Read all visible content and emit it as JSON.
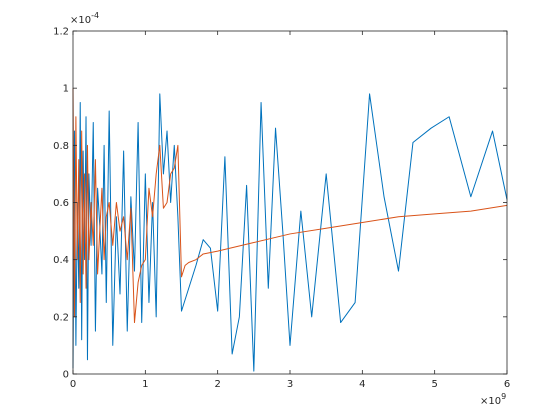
{
  "chart_data": {
    "type": "line",
    "title": "",
    "xlabel": "",
    "ylabel": "",
    "xlim": [
      0,
      6
    ],
    "ylim": [
      0,
      1.2
    ],
    "x_ticks": [
      "0",
      "1",
      "2",
      "3",
      "4",
      "5",
      "6"
    ],
    "y_ticks": [
      "0",
      "0.2",
      "0.4",
      "0.6",
      "0.8",
      "1",
      "1.2"
    ],
    "x_exponent": "9",
    "y_exponent": "-4",
    "grid": false,
    "legend": "none",
    "series": [
      {
        "color": "#0072BD",
        "x": [
          0.0,
          0.02,
          0.04,
          0.06,
          0.08,
          0.1,
          0.12,
          0.14,
          0.16,
          0.18,
          0.2,
          0.22,
          0.25,
          0.28,
          0.31,
          0.34,
          0.37,
          0.4,
          0.43,
          0.46,
          0.5,
          0.55,
          0.6,
          0.65,
          0.7,
          0.75,
          0.8,
          0.85,
          0.9,
          0.95,
          1.0,
          1.05,
          1.1,
          1.15,
          1.2,
          1.25,
          1.3,
          1.35,
          1.4,
          1.45,
          1.5,
          1.6,
          1.7,
          1.8,
          1.9,
          2.0,
          2.1,
          2.2,
          2.3,
          2.4,
          2.5,
          2.6,
          2.7,
          2.8,
          2.9,
          3.0,
          3.15,
          3.3,
          3.5,
          3.7,
          3.9,
          4.1,
          4.3,
          4.5,
          4.7,
          4.95,
          5.2,
          5.5,
          5.8,
          6.0
        ],
        "y": [
          0.02,
          0.85,
          0.1,
          0.6,
          0.3,
          0.95,
          0.12,
          0.78,
          0.4,
          0.9,
          0.05,
          0.7,
          0.45,
          0.88,
          0.15,
          0.65,
          0.52,
          0.35,
          0.8,
          0.25,
          0.92,
          0.1,
          0.55,
          0.28,
          0.78,
          0.15,
          0.62,
          0.36,
          0.88,
          0.18,
          0.7,
          0.25,
          0.6,
          0.2,
          0.98,
          0.7,
          0.85,
          0.6,
          0.8,
          0.55,
          0.22,
          0.3,
          0.38,
          0.47,
          0.44,
          0.22,
          0.76,
          0.07,
          0.2,
          0.66,
          0.01,
          0.95,
          0.3,
          0.86,
          0.5,
          0.1,
          0.57,
          0.2,
          0.7,
          0.18,
          0.25,
          0.98,
          0.62,
          0.36,
          0.81,
          0.86,
          0.9,
          0.62,
          0.85,
          0.61
        ]
      },
      {
        "color": "#D95319",
        "x": [
          0.0,
          0.02,
          0.04,
          0.06,
          0.08,
          0.1,
          0.12,
          0.14,
          0.16,
          0.18,
          0.2,
          0.22,
          0.25,
          0.28,
          0.31,
          0.34,
          0.37,
          0.4,
          0.43,
          0.46,
          0.5,
          0.55,
          0.6,
          0.65,
          0.7,
          0.75,
          0.8,
          0.85,
          0.9,
          0.95,
          1.0,
          1.05,
          1.1,
          1.15,
          1.2,
          1.25,
          1.3,
          1.35,
          1.4,
          1.45,
          1.5,
          1.55,
          1.6,
          1.7,
          1.8,
          2.0,
          2.5,
          3.0,
          3.5,
          4.0,
          4.5,
          5.0,
          5.5,
          6.0
        ],
        "y": [
          1.0,
          0.2,
          0.9,
          0.4,
          0.75,
          0.25,
          0.85,
          0.35,
          0.7,
          0.3,
          0.8,
          0.4,
          0.6,
          0.45,
          0.75,
          0.35,
          0.5,
          0.65,
          0.4,
          0.55,
          0.6,
          0.45,
          0.6,
          0.5,
          0.55,
          0.4,
          0.58,
          0.18,
          0.32,
          0.38,
          0.4,
          0.65,
          0.55,
          0.7,
          0.8,
          0.58,
          0.6,
          0.7,
          0.72,
          0.8,
          0.34,
          0.38,
          0.39,
          0.4,
          0.42,
          0.43,
          0.46,
          0.49,
          0.51,
          0.53,
          0.55,
          0.56,
          0.57,
          0.59
        ]
      }
    ]
  }
}
